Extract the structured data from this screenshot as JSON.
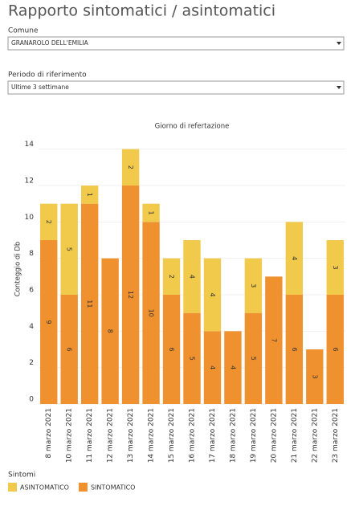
{
  "header": {
    "title": "Rapporto sintomatici / asintomatici",
    "filters": [
      {
        "label": "Comune",
        "value": "GRANAROLO DELL'EMILIA"
      },
      {
        "label": "Periodo di riferimento",
        "value": "Ultime 3 settimane"
      }
    ]
  },
  "chart_data": {
    "type": "bar",
    "stacked": true,
    "title": "Giorno di refertazione",
    "y_label": "Conteggio di Db",
    "categories": [
      "8 marzo 2021",
      "10 marzo 2021",
      "11 marzo 2021",
      "12 marzo 2021",
      "13 marzo 2021",
      "14 marzo 2021",
      "15 marzo 2021",
      "16 marzo 2021",
      "17 marzo 2021",
      "18 marzo 2021",
      "19 marzo 2021",
      "20 marzo 2021",
      "21 marzo 2021",
      "22 marzo 2021",
      "23 marzo 2021"
    ],
    "series": [
      {
        "name": "ASINTOMATICO",
        "color": "#f1c94b",
        "values": [
          2,
          5,
          1,
          null,
          2,
          1,
          2,
          4,
          4,
          null,
          3,
          null,
          4,
          null,
          3
        ]
      },
      {
        "name": "SINTOMATICO",
        "color": "#f0912f",
        "values": [
          9,
          6,
          11,
          8,
          12,
          10,
          6,
          5,
          4,
          4,
          5,
          7,
          6,
          3,
          6
        ]
      }
    ],
    "ylim": [
      0,
      15
    ],
    "yticks": [
      0,
      2,
      4,
      6,
      8,
      10,
      12,
      14
    ],
    "grid": true,
    "legend_title": "Sintomi"
  }
}
